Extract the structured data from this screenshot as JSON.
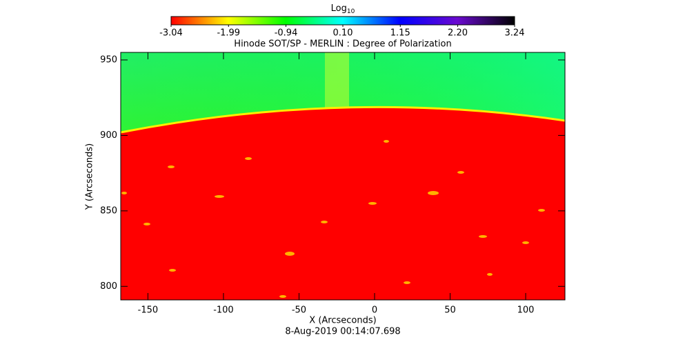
{
  "chart_data": {
    "type": "image",
    "title": "Hinode SOT/SP - MERLIN : Degree of Polarization",
    "date": "8-Aug-2019 00:14:07.698",
    "xlabel": "X (Arcseconds)",
    "ylabel": "Y (Arcseconds)",
    "xlim": [
      -168,
      126
    ],
    "ylim": [
      791,
      955
    ],
    "xticks": [
      -150,
      -100,
      -50,
      0,
      50,
      100
    ],
    "yticks": [
      800,
      850,
      900,
      950
    ],
    "colorbar_label": "Log",
    "colorbar_label_sub": "10",
    "clim": [
      -3.04,
      3.24
    ],
    "colorbar_ticks": [
      -3.04,
      -1.99,
      -0.94,
      {
        "value": 0.1,
        "label": "0.10"
      },
      1.15,
      {
        "value": 2.2,
        "label": "2.20"
      },
      3.24
    ],
    "colormap": [
      "#ff0000",
      "#ffff00",
      "#00ff00",
      "#00ffff",
      "#0000ff",
      "#6a0ad0",
      "#000000"
    ]
  }
}
